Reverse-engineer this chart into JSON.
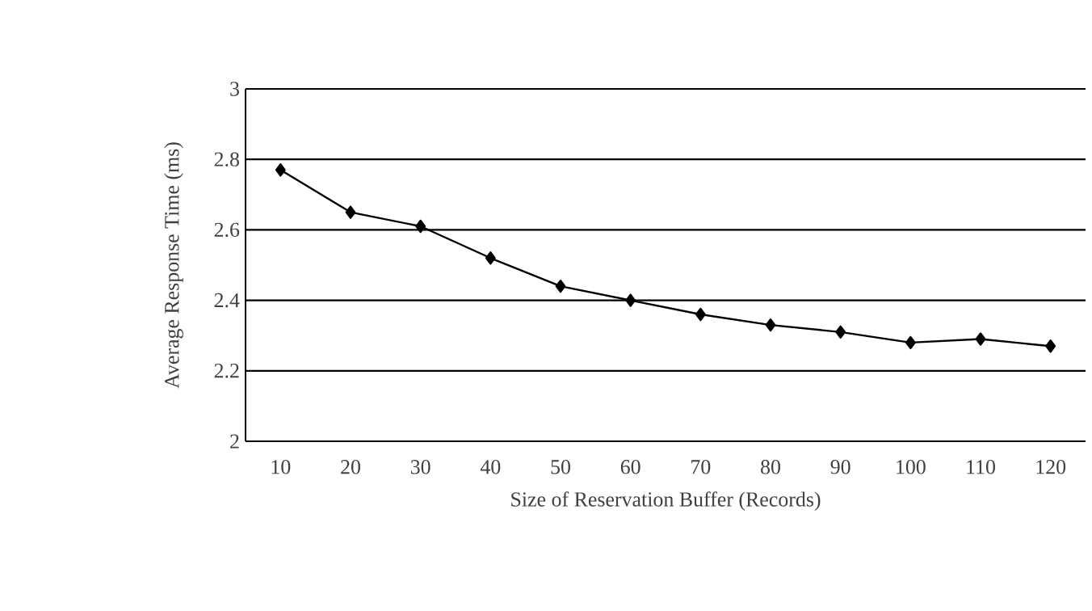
{
  "chart_data": {
    "type": "line",
    "xlabel": "Size of Reservation Buffer (Records)",
    "ylabel": "Average Response Time (ms)",
    "categories": [
      "10",
      "20",
      "30",
      "40",
      "50",
      "60",
      "70",
      "80",
      "90",
      "100",
      "110",
      "120"
    ],
    "series": [
      {
        "color": "#000000",
        "values": [
          2.77,
          2.65,
          2.61,
          2.52,
          2.44,
          2.4,
          2.36,
          2.33,
          2.31,
          2.28,
          2.29,
          2.27
        ]
      }
    ],
    "ylim": [
      2,
      3
    ],
    "yticks": [
      2,
      2.2,
      2.4,
      2.6,
      2.8,
      3
    ],
    "grid": "y",
    "marker": "diamond",
    "line_style": "solid"
  }
}
